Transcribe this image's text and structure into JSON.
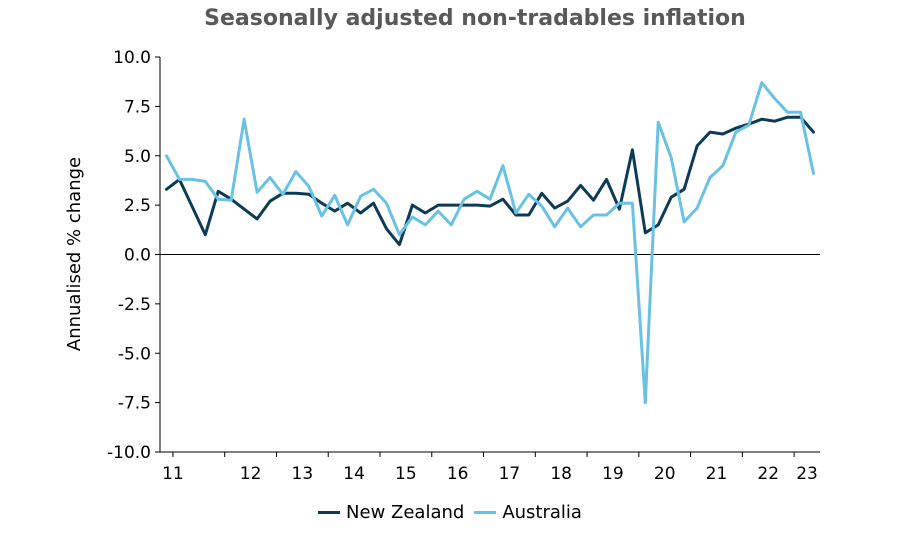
{
  "chart_data": {
    "type": "line",
    "title": "Seasonally adjusted non-tradables inflation",
    "ylabel": "Annualised % change",
    "xlabel": "",
    "ylim": [
      -10,
      10
    ],
    "yticks": [
      "10.0",
      "7.5",
      "5.0",
      "2.5",
      "0.0",
      "-2.5",
      "-5.0",
      "-7.5",
      "-10.0"
    ],
    "xticks": [
      "11",
      "12",
      "13",
      "14",
      "15",
      "16",
      "17",
      "18",
      "19",
      "20",
      "21",
      "22",
      "23"
    ],
    "x_range": [
      2010.75,
      2023.5
    ],
    "x": [
      2010.875,
      2011.125,
      2011.375,
      2011.625,
      2011.875,
      2012.125,
      2012.375,
      2012.625,
      2012.875,
      2013.125,
      2013.375,
      2013.625,
      2013.875,
      2014.125,
      2014.375,
      2014.625,
      2014.875,
      2015.125,
      2015.375,
      2015.625,
      2015.875,
      2016.125,
      2016.375,
      2016.625,
      2016.875,
      2017.125,
      2017.375,
      2017.625,
      2017.875,
      2018.125,
      2018.375,
      2018.625,
      2018.875,
      2019.125,
      2019.375,
      2019.625,
      2019.875,
      2020.125,
      2020.375,
      2020.625,
      2020.875,
      2021.125,
      2021.375,
      2021.625,
      2021.875,
      2022.125,
      2022.375,
      2022.625,
      2022.875,
      2023.125,
      2023.375
    ],
    "series": [
      {
        "name": "New Zealand",
        "color": "#0d3b57",
        "values": [
          3.3,
          3.8,
          2.4,
          1.0,
          3.2,
          2.8,
          2.3,
          1.8,
          2.7,
          3.1,
          3.1,
          3.05,
          2.6,
          2.2,
          2.6,
          2.1,
          2.6,
          1.3,
          0.5,
          2.5,
          2.1,
          2.5,
          2.5,
          2.5,
          2.5,
          2.45,
          2.8,
          2.0,
          2.0,
          3.1,
          2.35,
          2.7,
          3.5,
          2.75,
          3.8,
          2.3,
          5.3,
          1.1,
          1.5,
          2.9,
          3.3,
          5.5,
          6.2,
          6.1,
          6.4,
          6.6,
          6.85,
          6.75,
          6.95,
          6.95,
          6.2
        ]
      },
      {
        "name": "Australia",
        "color": "#69c1e3",
        "values": [
          5.0,
          3.8,
          3.8,
          3.7,
          2.8,
          2.75,
          6.85,
          3.15,
          3.9,
          3.05,
          4.2,
          3.45,
          1.95,
          3.0,
          1.5,
          2.95,
          3.3,
          2.6,
          1.0,
          1.9,
          1.5,
          2.2,
          1.5,
          2.8,
          3.2,
          2.8,
          4.5,
          2.1,
          3.05,
          2.45,
          1.4,
          2.35,
          1.4,
          2.0,
          2.0,
          2.6,
          2.6,
          -7.5,
          6.7,
          4.9,
          1.65,
          2.35,
          3.9,
          4.5,
          6.2,
          6.55,
          8.7,
          7.9,
          7.2,
          7.2,
          4.1
        ]
      }
    ],
    "grid": false,
    "legend_position": "bottom-center"
  }
}
